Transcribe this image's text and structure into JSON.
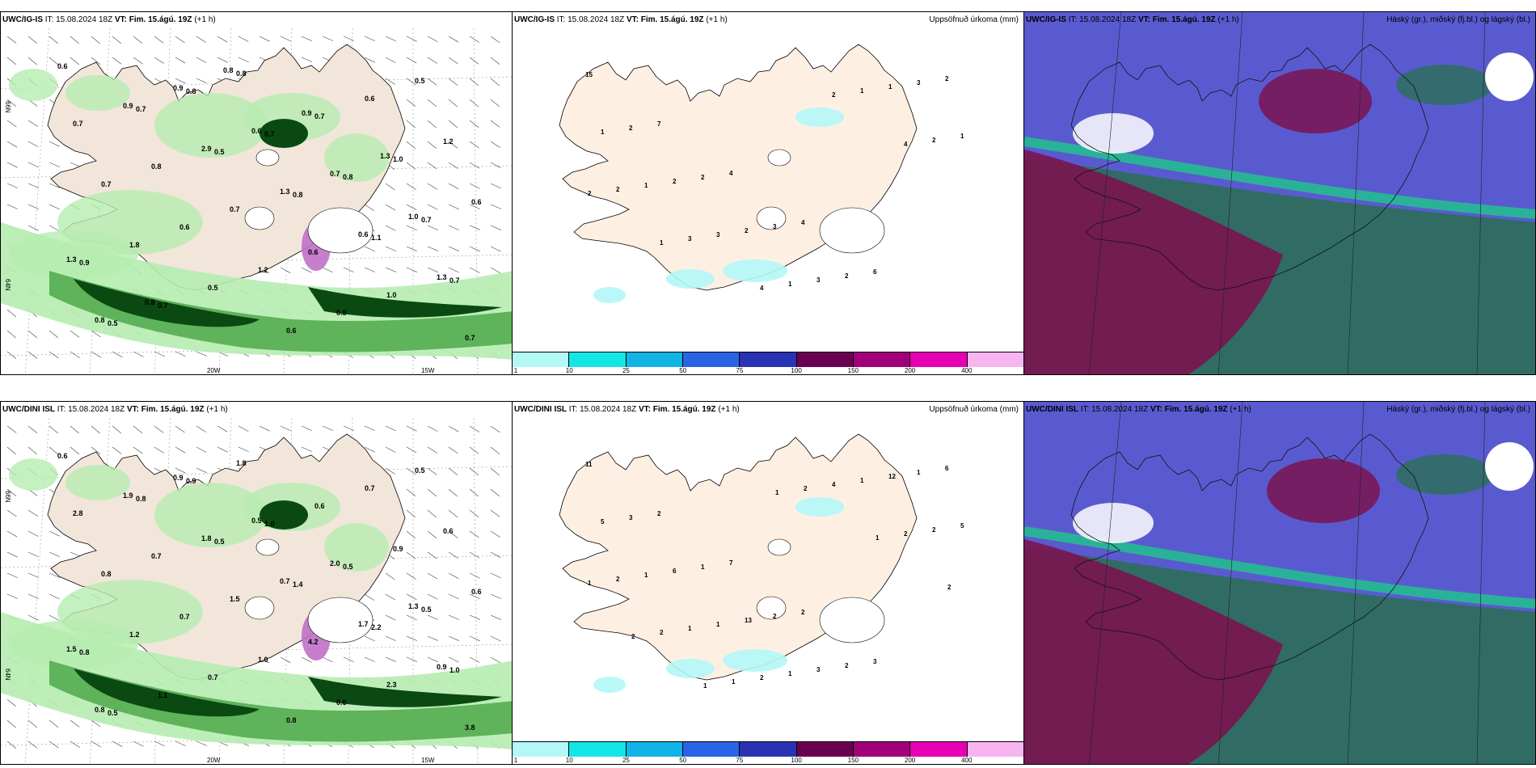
{
  "panels": [
    {
      "id": "p1",
      "title_model": "UWC/IG-IS",
      "title_rest": " IT: 15.08.2024 18Z ",
      "title_vt": "VT: Fim. 15.ágú. 19Z",
      "title_tail": " (+1 h)",
      "right": ""
    },
    {
      "id": "p2",
      "title_model": "UWC/IG-IS",
      "title_rest": " IT: 15.08.2024 18Z ",
      "title_vt": "VT: Fim. 15.ágú. 19Z",
      "title_tail": " (+1 h)",
      "right": "Uppsöfnuð úrkoma (mm)"
    },
    {
      "id": "p3",
      "title_model": "UWC/IG-IS",
      "title_rest": " IT: 15.08.2024 18Z ",
      "title_vt": "VT: Fim. 15.ágú. 19Z",
      "title_tail": " (+1 h)",
      "right": "Háský (gr.), miðský (fj.bl.) og lágský (bl.)"
    },
    {
      "id": "p4",
      "title_model": "UWC/DINI ISL",
      "title_rest": " IT: 15.08.2024 18Z ",
      "title_vt": "VT: Fim. 15.ágú. 19Z",
      "title_tail": " (+1 h)",
      "right": ""
    },
    {
      "id": "p5",
      "title_model": "UWC/DINI ISL",
      "title_rest": " IT: 15.08.2024 18Z ",
      "title_vt": "VT: Fim. 15.ágú. 19Z",
      "title_tail": " (+1 h)",
      "right": "Uppsöfnuð úrkoma (mm)"
    },
    {
      "id": "p6",
      "title_model": "UWC/DINI ISL",
      "title_rest": " IT: 15.08.2024 18Z ",
      "title_vt": "VT: Fim. 15.ágú. 19Z",
      "title_tail": " (+1 h)",
      "right": "Háský (gr.), miðský (fj.bl.) og lágský (bl.)"
    }
  ],
  "axis_labels": {
    "lon_20w": "20W",
    "lon_15w": "15W",
    "lat_66n": "66N",
    "lat_64n": "64N"
  },
  "legend": {
    "labels": [
      "1",
      "10",
      "25",
      "50",
      "75",
      "100",
      "150",
      "200",
      "400"
    ],
    "colors": [
      "#b3f7f7",
      "#14e6e6",
      "#12b4e6",
      "#2a64e6",
      "#2a32b4",
      "#6a0050",
      "#a0007a",
      "#e600b4",
      "#f7b4f0"
    ]
  },
  "colors": {
    "land": "#f2e6da",
    "land_precip": "#fbeee3",
    "light_green": "#b6ecb0",
    "mid_green": "#4fa84a",
    "dark_green": "#0a4a12",
    "purple": "#c070c8",
    "cloud_blue": "#5a5ad0",
    "cloud_dark": "#7a1450",
    "cloud_teal": "#2e6e5e",
    "cloud_green": "#1ec88a"
  },
  "p1_values": [
    "0.6",
    "0.7",
    "0.5",
    "0.8",
    "1.1",
    "0.7",
    "0.5",
    "0.8",
    "0.7",
    "0.8",
    "0.7",
    "0.9",
    "0.7",
    "0.8",
    "0.7",
    "1.0",
    "0.6",
    "1.8",
    "0.5",
    "0.6",
    "0.6",
    "1.2",
    "0.7",
    "0.6",
    "1.2",
    "0.8",
    "0.5",
    "0.7",
    "0.8",
    "0.7",
    "0.6",
    "1.0",
    "0.7",
    "0.9",
    "2.9",
    "1.3",
    "0.6",
    "1.3",
    "0.8",
    "0.9",
    "0.6",
    "0.7",
    "1.0",
    "1.3",
    "0.8",
    "0.8",
    "0.9",
    "1.3"
  ],
  "p2_values": [
    "15",
    "7",
    "4",
    "4",
    "6",
    "2",
    "2",
    "2",
    "3",
    "2",
    "3",
    "1",
    "2",
    "2",
    "3",
    "1",
    "1",
    "1",
    "3",
    "1",
    "1",
    "2",
    "2",
    "3",
    "4",
    "2",
    "4",
    "2",
    "1"
  ],
  "p4_values": [
    "0.6",
    "0.8",
    "0.5",
    "1.4",
    "2.2",
    "1.0",
    "0.5",
    "0.9",
    "1.0",
    "0.5",
    "0.5",
    "0.8",
    "1.1",
    "1.8",
    "0.6",
    "0.9",
    "0.6",
    "1.2",
    "0.7",
    "0.8",
    "0.7",
    "0.6",
    "0.8",
    "0.7",
    "1.0",
    "0.6",
    "0.5",
    "2.8",
    "0.7",
    "1.5",
    "4.2",
    "2.3",
    "3.8",
    "1.9",
    "1.8",
    "0.7",
    "1.7",
    "0.9",
    "0.8",
    "0.9",
    "0.5",
    "2.0",
    "1.3",
    "1.5"
  ],
  "p5_values": [
    "11",
    "2",
    "7",
    "2",
    "3",
    "6",
    "3",
    "1",
    "2",
    "2",
    "1",
    "5",
    "6",
    "13",
    "3",
    "12",
    "5",
    "1",
    "1",
    "1",
    "1",
    "2",
    "2",
    "1",
    "2",
    "4",
    "2",
    "1",
    "2",
    "1",
    "2",
    "1",
    "2",
    "2",
    "1",
    "1"
  ]
}
